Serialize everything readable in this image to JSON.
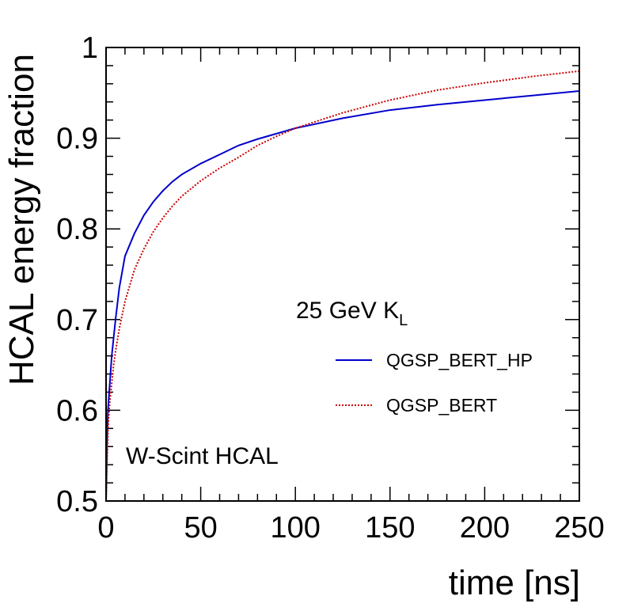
{
  "chart_data": {
    "type": "line",
    "xlabel": "time [ns]",
    "ylabel": "HCAL energy fraction",
    "xlim": [
      0,
      250
    ],
    "ylim": [
      0.5,
      1.0
    ],
    "x_ticks": [
      "0",
      "50",
      "100",
      "150",
      "200",
      "250"
    ],
    "y_ticks": [
      "0.5",
      "0.6",
      "0.7",
      "0.8",
      "0.9",
      "1"
    ],
    "grid": false,
    "legend_position": "right-middle",
    "annotations": {
      "particle": "25 GeV K",
      "particle_subscript": "L",
      "detector": "W-Scint HCAL"
    },
    "series": [
      {
        "name": "QGSP_BERT_HP",
        "color": "#0000cc",
        "style": "solid",
        "x": [
          0,
          0.5,
          1,
          2,
          3,
          4,
          5,
          7,
          10,
          15,
          20,
          25,
          30,
          35,
          40,
          50,
          60,
          70,
          80,
          90,
          100,
          125,
          150,
          175,
          200,
          225,
          250
        ],
        "y": [
          0.5,
          0.56,
          0.6,
          0.63,
          0.66,
          0.68,
          0.7,
          0.735,
          0.77,
          0.795,
          0.815,
          0.83,
          0.842,
          0.852,
          0.86,
          0.872,
          0.882,
          0.892,
          0.899,
          0.905,
          0.911,
          0.922,
          0.931,
          0.937,
          0.942,
          0.947,
          0.952
        ]
      },
      {
        "name": "QGSP_BERT",
        "color": "#cc0000",
        "style": "dotted",
        "x": [
          0,
          0.5,
          1,
          2,
          3,
          4,
          5,
          7,
          10,
          15,
          20,
          25,
          30,
          35,
          40,
          50,
          60,
          70,
          80,
          90,
          100,
          125,
          150,
          175,
          200,
          225,
          250
        ],
        "y": [
          0.5,
          0.54,
          0.58,
          0.61,
          0.63,
          0.65,
          0.665,
          0.69,
          0.72,
          0.755,
          0.778,
          0.797,
          0.812,
          0.825,
          0.836,
          0.853,
          0.867,
          0.879,
          0.892,
          0.902,
          0.911,
          0.928,
          0.942,
          0.953,
          0.961,
          0.968,
          0.974
        ]
      }
    ]
  }
}
